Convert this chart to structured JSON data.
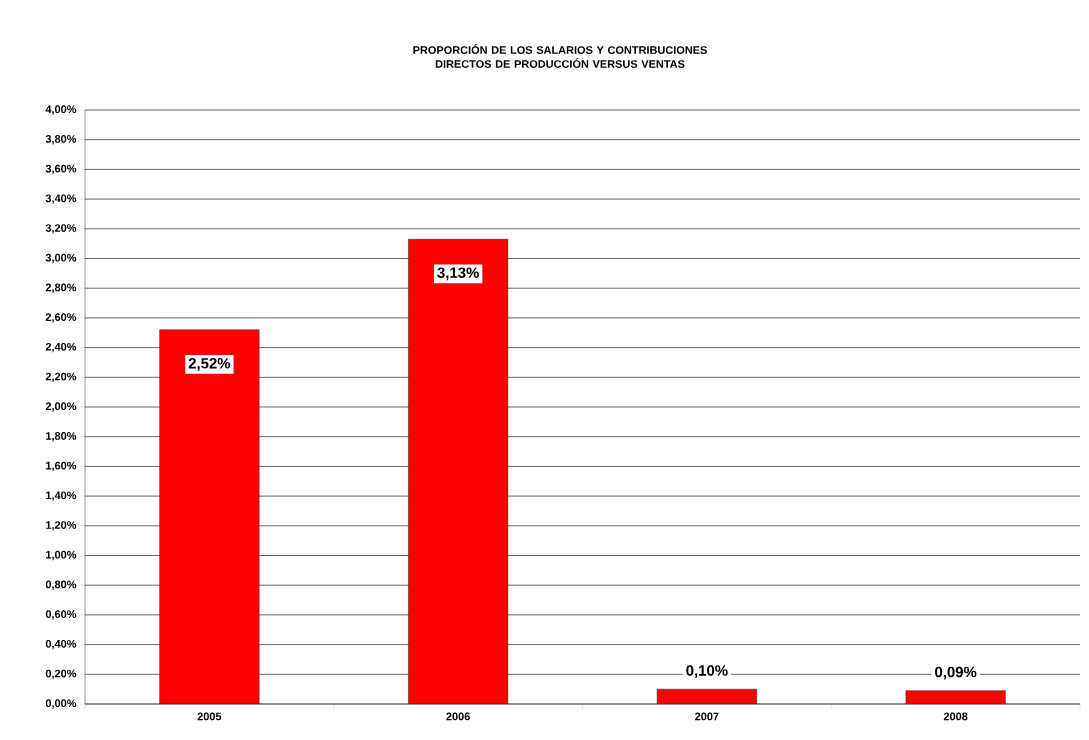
{
  "chart_data": {
    "type": "bar",
    "title": "PROPORCIÓN DE LOS SALARIOS Y CONTRIBUCIONES DIRECTOS DE PRODUCCIÓN VERSUS VENTAS",
    "categories": [
      "2005",
      "2006",
      "2007",
      "2008"
    ],
    "values": [
      2.52,
      3.13,
      0.1,
      0.09
    ],
    "value_labels": [
      "2,52%",
      "3,13%",
      "0,10%",
      "0,09%"
    ],
    "color": "#ff0000",
    "ylim": [
      0,
      4
    ],
    "yticks": [
      {
        "value": 0,
        "label": "0,00%"
      },
      {
        "value": 0.2,
        "label": "0,20%"
      },
      {
        "value": 0.4,
        "label": "0,40%"
      },
      {
        "value": 0.6,
        "label": "0,60%"
      },
      {
        "value": 0.8,
        "label": "0,80%"
      },
      {
        "value": 1.0,
        "label": "1,00%"
      },
      {
        "value": 1.2,
        "label": "1,20%"
      },
      {
        "value": 1.4,
        "label": "1,40%"
      },
      {
        "value": 1.6,
        "label": "1,60%"
      },
      {
        "value": 1.8,
        "label": "1,80%"
      },
      {
        "value": 2.0,
        "label": "2,00%"
      },
      {
        "value": 2.2,
        "label": "2,20%"
      },
      {
        "value": 2.4,
        "label": "2,40%"
      },
      {
        "value": 2.6,
        "label": "2,60%"
      },
      {
        "value": 2.8,
        "label": "2,80%"
      },
      {
        "value": 3.0,
        "label": "3,00%"
      },
      {
        "value": 3.2,
        "label": "3,20%"
      },
      {
        "value": 3.4,
        "label": "3,40%"
      },
      {
        "value": 3.6,
        "label": "3,60%"
      },
      {
        "value": 3.8,
        "label": "3,80%"
      },
      {
        "value": 4.0,
        "label": "4,00%"
      }
    ],
    "grid": "y"
  }
}
